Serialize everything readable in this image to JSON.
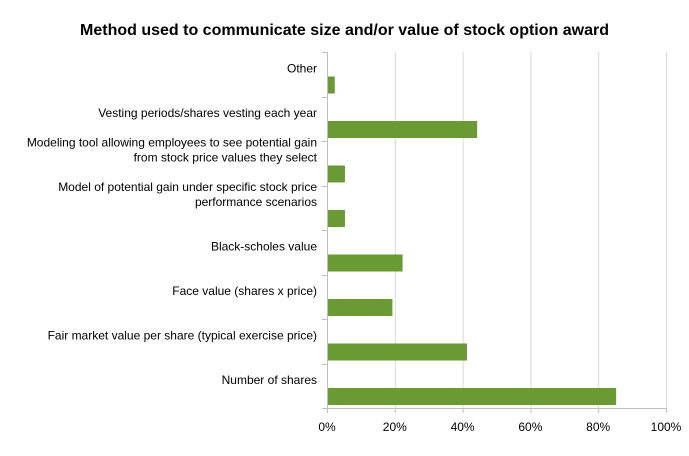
{
  "chart_data": {
    "type": "bar",
    "orientation": "horizontal",
    "title": "Method used to communicate  size and/or value of stock option award",
    "xlabel": "",
    "ylabel": "",
    "categories": [
      [
        "Other"
      ],
      [
        "Vesting periods/shares vesting each year"
      ],
      [
        "Modeling tool allowing employees to see potential gain",
        "from stock price values they select"
      ],
      [
        "Model of potential gain under specific stock price",
        "performance scenarios"
      ],
      [
        "Black-scholes value"
      ],
      [
        "Face value (shares x price)"
      ],
      [
        "Fair market value per share (typical exercise price)"
      ],
      [
        "Number of shares"
      ]
    ],
    "values": [
      2,
      44,
      5,
      5,
      22,
      19,
      41,
      85
    ],
    "unit": "%",
    "xlim": [
      0,
      100
    ],
    "xticks": [
      "0%",
      "20%",
      "40%",
      "60%",
      "80%",
      "100%"
    ],
    "xtick_values": [
      0,
      20,
      40,
      60,
      80,
      100
    ],
    "grid": "vertical",
    "legend": "none",
    "bar_color": "#6a9a34"
  }
}
